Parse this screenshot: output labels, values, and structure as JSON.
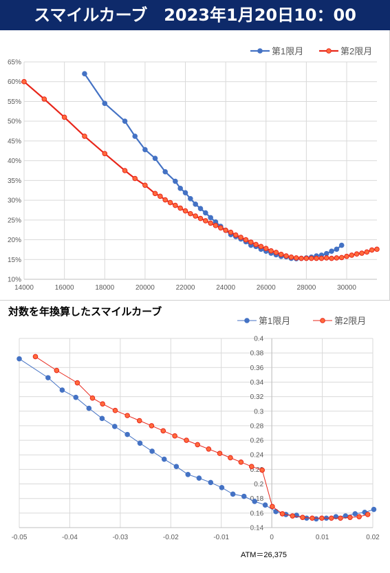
{
  "header": {
    "title": "スマイルカーブ　2023年1月20日10：00"
  },
  "colors": {
    "series1": "#4472c4",
    "series2": "#e8261a",
    "series2_marker": "#ff6b3d",
    "grid": "#d9d9d9",
    "header_bg": "#0e2a6a"
  },
  "chart_data": [
    {
      "type": "line",
      "title": "",
      "xlabel": "",
      "ylabel": "",
      "xlim": [
        14000,
        31500
      ],
      "ylim": [
        0.1,
        0.65
      ],
      "x_ticks": [
        "14000",
        "16000",
        "18000",
        "20000",
        "22000",
        "24000",
        "26000",
        "28000",
        "30000"
      ],
      "y_ticks": [
        "10%",
        "15%",
        "20%",
        "25%",
        "30%",
        "35%",
        "40%",
        "45%",
        "50%",
        "55%",
        "60%",
        "65%"
      ],
      "legend": {
        "position": "top-right",
        "items": [
          "第1限月",
          "第2限月"
        ]
      },
      "grid": true,
      "series": [
        {
          "name": "第1限月",
          "x": [
            17000,
            18000,
            19000,
            19500,
            20000,
            20500,
            21000,
            21500,
            21750,
            22000,
            22250,
            22500,
            22750,
            23000,
            23250,
            23500,
            23750,
            24000,
            24250,
            24500,
            24750,
            25000,
            25250,
            25500,
            25750,
            26000,
            26250,
            26500,
            26750,
            27000,
            27250,
            27500,
            27750,
            28000,
            28250,
            28500,
            28750,
            29000,
            29250,
            29500,
            29750
          ],
          "y": [
            0.62,
            0.545,
            0.5,
            0.462,
            0.428,
            0.406,
            0.372,
            0.348,
            0.33,
            0.319,
            0.304,
            0.29,
            0.279,
            0.268,
            0.256,
            0.245,
            0.234,
            0.224,
            0.213,
            0.208,
            0.202,
            0.195,
            0.186,
            0.183,
            0.176,
            0.171,
            0.166,
            0.162,
            0.158,
            0.157,
            0.153,
            0.152,
            0.153,
            0.154,
            0.156,
            0.159,
            0.161,
            0.165,
            0.171,
            0.176,
            0.186
          ]
        },
        {
          "name": "第2限月",
          "x": [
            14000,
            15000,
            16000,
            17000,
            18000,
            19000,
            19500,
            20000,
            20500,
            20750,
            21000,
            21250,
            21500,
            21750,
            22000,
            22250,
            22500,
            22750,
            23000,
            23250,
            23500,
            23750,
            24000,
            24250,
            24500,
            24750,
            25000,
            25250,
            25500,
            25750,
            26000,
            26250,
            26500,
            26750,
            27000,
            27250,
            27500,
            27750,
            28000,
            28250,
            28500,
            28750,
            29000,
            29250,
            29500,
            29750,
            30000,
            30250,
            30500,
            30750,
            31000,
            31250,
            31500
          ],
          "y": [
            0.6,
            0.556,
            0.51,
            0.462,
            0.418,
            0.375,
            0.355,
            0.338,
            0.317,
            0.31,
            0.301,
            0.294,
            0.287,
            0.28,
            0.273,
            0.266,
            0.26,
            0.254,
            0.248,
            0.242,
            0.236,
            0.23,
            0.224,
            0.219,
            0.212,
            0.206,
            0.2,
            0.194,
            0.188,
            0.183,
            0.178,
            0.172,
            0.168,
            0.163,
            0.159,
            0.156,
            0.154,
            0.153,
            0.153,
            0.153,
            0.153,
            0.153,
            0.154,
            0.153,
            0.154,
            0.155,
            0.158,
            0.161,
            0.164,
            0.166,
            0.169,
            0.174,
            0.176
          ]
        }
      ]
    },
    {
      "type": "line",
      "title": "対数を年換算したスマイルカーブ",
      "xlabel": "",
      "ylabel": "",
      "xlim": [
        -0.05,
        0.02
      ],
      "ylim": [
        0.14,
        0.4
      ],
      "x_ticks": [
        "-0.05",
        "-0.04",
        "-0.03",
        "-0.02",
        "-0.01",
        "0",
        "0.01",
        "0.02"
      ],
      "y_ticks": [
        "0.14",
        "0.16",
        "0.18",
        "0.2",
        "0.22",
        "0.24",
        "0.26",
        "0.28",
        "0.3",
        "0.32",
        "0.34",
        "0.36",
        "0.38",
        "0.4"
      ],
      "legend": {
        "position": "top-right",
        "items": [
          "第1限月",
          "第2限月"
        ]
      },
      "grid": true,
      "annotation": "ATM＝26,375",
      "series": [
        {
          "name": "第1限月",
          "x": [
            -0.05,
            -0.0443,
            -0.0415,
            -0.0388,
            -0.0362,
            -0.0336,
            -0.0311,
            -0.0286,
            -0.0261,
            -0.0237,
            -0.0213,
            -0.0189,
            -0.0166,
            -0.0144,
            -0.0121,
            -0.0099,
            -0.0077,
            -0.0055,
            -0.0034,
            -0.0013,
            0.0008,
            0.0028,
            0.0049,
            0.0069,
            0.0088,
            0.0108,
            0.0127,
            0.0146,
            0.0165,
            0.0184,
            0.0202
          ],
          "y": [
            0.372,
            0.346,
            0.329,
            0.319,
            0.304,
            0.29,
            0.279,
            0.268,
            0.256,
            0.245,
            0.234,
            0.224,
            0.213,
            0.208,
            0.202,
            0.195,
            0.186,
            0.183,
            0.176,
            0.171,
            0.162,
            0.158,
            0.157,
            0.153,
            0.152,
            0.153,
            0.155,
            0.156,
            0.159,
            0.161,
            0.165
          ]
        },
        {
          "name": "第2限月",
          "x": [
            -0.0468,
            -0.0426,
            -0.0385,
            -0.0355,
            -0.0335,
            -0.031,
            -0.0286,
            -0.0262,
            -0.0238,
            -0.0215,
            -0.0192,
            -0.0169,
            -0.0147,
            -0.0125,
            -0.0103,
            -0.0082,
            -0.0061,
            -0.004,
            -0.0019,
            0.0001,
            0.0021,
            0.0041,
            0.0061,
            0.008,
            0.0099,
            0.0118,
            0.0136,
            0.0155,
            0.0173,
            0.019
          ],
          "y": [
            0.375,
            0.356,
            0.339,
            0.318,
            0.31,
            0.301,
            0.294,
            0.287,
            0.28,
            0.273,
            0.266,
            0.26,
            0.254,
            0.248,
            0.242,
            0.236,
            0.23,
            0.224,
            0.219,
            0.169,
            0.159,
            0.156,
            0.154,
            0.153,
            0.153,
            0.153,
            0.153,
            0.154,
            0.155,
            0.158
          ]
        }
      ]
    }
  ]
}
